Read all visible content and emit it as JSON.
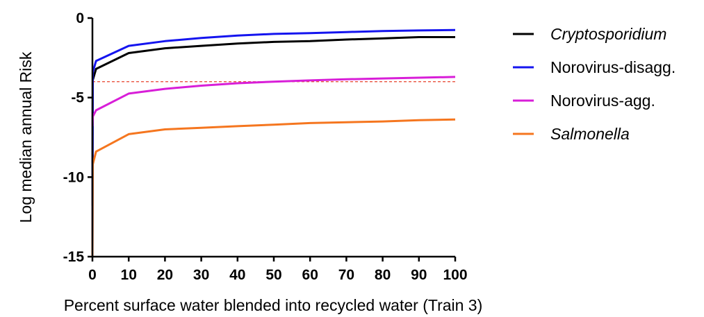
{
  "chart_data": {
    "type": "line",
    "xlabel": "Percent surface water blended into recycled water (Train 3)",
    "ylabel": "Log median annual  Risk",
    "xlim": [
      0,
      100
    ],
    "ylim": [
      -15,
      0
    ],
    "xticks": [
      0,
      10,
      20,
      30,
      40,
      50,
      60,
      70,
      80,
      90,
      100
    ],
    "yticks": [
      -15,
      -10,
      -5,
      0
    ],
    "ytick_labels": [
      "-15",
      "-10",
      "-5",
      "0"
    ],
    "grid": false,
    "legend_position": "top-right",
    "reference_line": {
      "y": -4,
      "color": "#e8402a",
      "style": "dashed"
    },
    "series": [
      {
        "name": "Cryptosporidium",
        "italic": true,
        "color": "#000000",
        "x": [
          0,
          0.1,
          1,
          10,
          20,
          30,
          40,
          50,
          60,
          70,
          80,
          90,
          100
        ],
        "y": [
          -11.8,
          -3.9,
          -3.2,
          -2.2,
          -1.9,
          -1.75,
          -1.6,
          -1.5,
          -1.45,
          -1.35,
          -1.28,
          -1.2,
          -1.2
        ]
      },
      {
        "name": "Norovirus-disagg.",
        "italic": false,
        "color": "#1414ef",
        "x": [
          0,
          0.1,
          1,
          10,
          20,
          30,
          40,
          50,
          60,
          70,
          80,
          90,
          100
        ],
        "y": [
          -15,
          -3.4,
          -2.7,
          -1.75,
          -1.45,
          -1.25,
          -1.1,
          -1.0,
          -0.95,
          -0.88,
          -0.82,
          -0.78,
          -0.75
        ]
      },
      {
        "name": "Norovirus-agg.",
        "italic": false,
        "color": "#d81ed8",
        "x": [
          0,
          0.1,
          1,
          10,
          20,
          30,
          40,
          50,
          60,
          70,
          80,
          90,
          100
        ],
        "y": [
          -6.8,
          -6.2,
          -5.8,
          -4.75,
          -4.45,
          -4.25,
          -4.1,
          -4.0,
          -3.92,
          -3.85,
          -3.8,
          -3.75,
          -3.7
        ]
      },
      {
        "name": "Salmonella",
        "italic": true,
        "color": "#f5761f",
        "x": [
          0,
          0.1,
          1,
          10,
          20,
          30,
          40,
          50,
          60,
          70,
          80,
          90,
          100
        ],
        "y": [
          -15,
          -9.2,
          -8.4,
          -7.3,
          -7.0,
          -6.9,
          -6.8,
          -6.7,
          -6.6,
          -6.55,
          -6.5,
          -6.42,
          -6.38
        ]
      }
    ]
  }
}
